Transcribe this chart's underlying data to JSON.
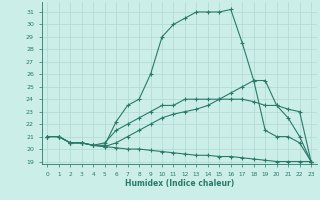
{
  "xlabel": "Humidex (Indice chaleur)",
  "bg_color": "#cceee8",
  "line_color": "#2a7a6a",
  "grid_color": "#b0d8d4",
  "xlim": [
    -0.5,
    23.5
  ],
  "ylim": [
    18.8,
    31.8
  ],
  "xticks": [
    0,
    1,
    2,
    3,
    4,
    5,
    6,
    7,
    8,
    9,
    10,
    11,
    12,
    13,
    14,
    15,
    16,
    17,
    18,
    19,
    20,
    21,
    22,
    23
  ],
  "yticks": [
    19,
    20,
    21,
    22,
    23,
    24,
    25,
    26,
    27,
    28,
    29,
    30,
    31
  ],
  "lines": [
    {
      "x": [
        0,
        1,
        2,
        3,
        4,
        5,
        6,
        7,
        8,
        9,
        10,
        11,
        12,
        13,
        14,
        15,
        16,
        17,
        18,
        19,
        20,
        21,
        22,
        23
      ],
      "y": [
        21.0,
        21.0,
        20.5,
        20.5,
        20.3,
        20.2,
        20.1,
        20.0,
        20.0,
        19.9,
        19.8,
        19.7,
        19.6,
        19.5,
        19.5,
        19.4,
        19.4,
        19.3,
        19.2,
        19.1,
        19.0,
        19.0,
        19.0,
        19.0
      ]
    },
    {
      "x": [
        0,
        1,
        2,
        3,
        4,
        5,
        6,
        7,
        8,
        9,
        10,
        11,
        12,
        13,
        14,
        15,
        16,
        17,
        18,
        19,
        20,
        21,
        22,
        23
      ],
      "y": [
        21.0,
        21.0,
        20.5,
        20.5,
        20.3,
        20.2,
        20.5,
        21.0,
        21.5,
        22.0,
        22.5,
        22.8,
        23.0,
        23.2,
        23.5,
        24.0,
        24.5,
        25.0,
        25.5,
        25.5,
        23.5,
        22.5,
        21.0,
        19.0
      ]
    },
    {
      "x": [
        0,
        1,
        2,
        3,
        4,
        5,
        6,
        7,
        8,
        9,
        10,
        11,
        12,
        13,
        14,
        15,
        16,
        17,
        18,
        19,
        20,
        21,
        22,
        23
      ],
      "y": [
        21.0,
        21.0,
        20.5,
        20.5,
        20.3,
        20.5,
        21.5,
        22.0,
        22.5,
        23.0,
        23.5,
        23.5,
        24.0,
        24.0,
        24.0,
        24.0,
        24.0,
        24.0,
        23.8,
        23.5,
        23.5,
        23.2,
        23.0,
        19.0
      ]
    },
    {
      "x": [
        0,
        1,
        2,
        3,
        4,
        5,
        6,
        7,
        8,
        9,
        10,
        11,
        12,
        13,
        14,
        15,
        16,
        17,
        18,
        19,
        20,
        21,
        22,
        23
      ],
      "y": [
        21.0,
        21.0,
        20.5,
        20.5,
        20.3,
        20.3,
        22.2,
        23.5,
        24.0,
        26.0,
        29.0,
        30.0,
        30.5,
        31.0,
        31.0,
        31.0,
        31.2,
        28.5,
        25.5,
        21.5,
        21.0,
        21.0,
        20.5,
        19.0
      ]
    }
  ]
}
